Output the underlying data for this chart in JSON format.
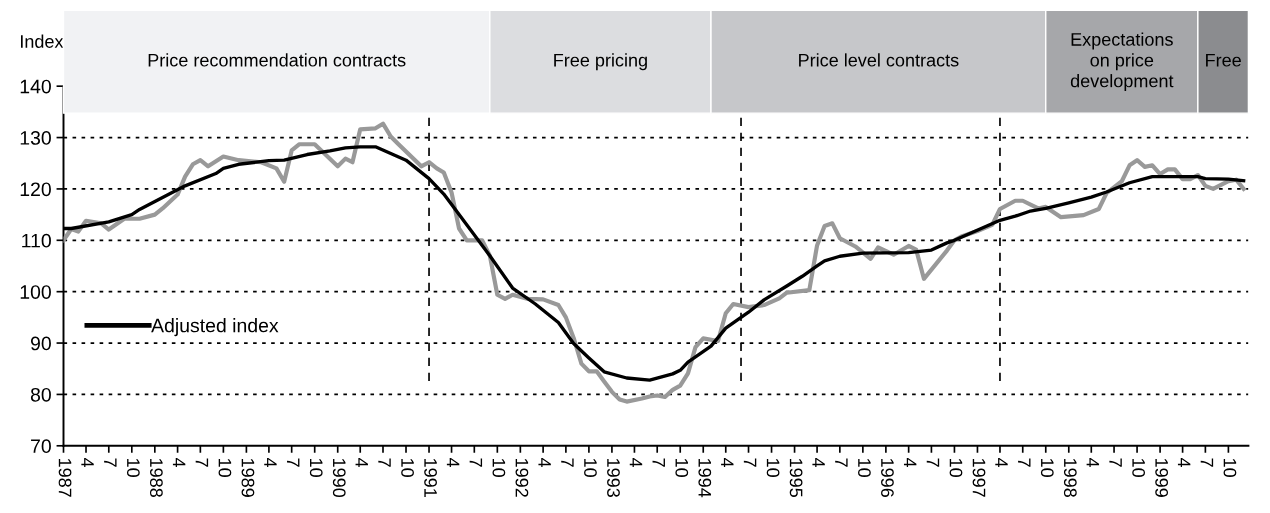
{
  "chart_data": {
    "type": "line",
    "ylabel": "Index",
    "xlim": [
      "1987-01-01",
      "1999-12-20"
    ],
    "ylim": [
      70,
      140
    ],
    "yticks": [
      70,
      80,
      90,
      100,
      110,
      120,
      130,
      140
    ],
    "xticks": [
      {
        "value": "1987-01",
        "label": "1987"
      },
      {
        "value": "1987-04",
        "label": "4"
      },
      {
        "value": "1987-07",
        "label": "7"
      },
      {
        "value": "1987-10",
        "label": "10"
      },
      {
        "value": "1988-01",
        "label": "1988"
      },
      {
        "value": "1988-04",
        "label": "4"
      },
      {
        "value": "1988-07",
        "label": "7"
      },
      {
        "value": "1988-10",
        "label": "10"
      },
      {
        "value": "1989-01",
        "label": "1989"
      },
      {
        "value": "1989-04",
        "label": "4"
      },
      {
        "value": "1989-07",
        "label": "7"
      },
      {
        "value": "1989-10",
        "label": "10"
      },
      {
        "value": "1990-01",
        "label": "1990"
      },
      {
        "value": "1990-04",
        "label": "4"
      },
      {
        "value": "1990-07",
        "label": "7"
      },
      {
        "value": "1990-10",
        "label": "10"
      },
      {
        "value": "1991-01",
        "label": "1991"
      },
      {
        "value": "1991-04",
        "label": "4"
      },
      {
        "value": "1991-07",
        "label": "7"
      },
      {
        "value": "1991-10",
        "label": "10"
      },
      {
        "value": "1992-01",
        "label": "1992"
      },
      {
        "value": "1992-04",
        "label": "4"
      },
      {
        "value": "1992-07",
        "label": "7"
      },
      {
        "value": "1992-10",
        "label": "10"
      },
      {
        "value": "1993-01",
        "label": "1993"
      },
      {
        "value": "1993-04",
        "label": "4"
      },
      {
        "value": "1993-07",
        "label": "7"
      },
      {
        "value": "1993-10",
        "label": "10"
      },
      {
        "value": "1994-01",
        "label": "1994"
      },
      {
        "value": "1994-04",
        "label": "4"
      },
      {
        "value": "1994-07",
        "label": "7"
      },
      {
        "value": "1994-10",
        "label": "10"
      },
      {
        "value": "1995-01",
        "label": "1995"
      },
      {
        "value": "1995-04",
        "label": "4"
      },
      {
        "value": "1995-07",
        "label": "7"
      },
      {
        "value": "1995-10",
        "label": "10"
      },
      {
        "value": "1996-01",
        "label": "1996"
      },
      {
        "value": "1996-04",
        "label": "4"
      },
      {
        "value": "1996-07",
        "label": "7"
      },
      {
        "value": "1996-10",
        "label": "10"
      },
      {
        "value": "1997-01",
        "label": "1997"
      },
      {
        "value": "1997-04",
        "label": "4"
      },
      {
        "value": "1997-07",
        "label": "7"
      },
      {
        "value": "1997-10",
        "label": "10"
      },
      {
        "value": "1998-01",
        "label": "1998"
      },
      {
        "value": "1998-04",
        "label": "4"
      },
      {
        "value": "1998-07",
        "label": "7"
      },
      {
        "value": "1998-10",
        "label": "10"
      },
      {
        "value": "1999-01",
        "label": "1999"
      },
      {
        "value": "1999-04",
        "label": "4"
      },
      {
        "value": "1999-07",
        "label": "7"
      },
      {
        "value": "1999-10",
        "label": "10"
      }
    ],
    "grid": "y",
    "legend": "left",
    "line_style": "solid",
    "series": [
      {
        "color": "#999999",
        "x": [
          "1987-01",
          "1987-02",
          "1987-03",
          "1987-04",
          "1987-06",
          "1987-07",
          "1987-09",
          "1987-11",
          "1988-01",
          "1988-02",
          "1988-04",
          "1988-05",
          "1988-06",
          "1988-07",
          "1988-08",
          "1988-10",
          "1988-12",
          "1989-03",
          "1989-05",
          "1989-06",
          "1989-07",
          "1989-08",
          "1989-10",
          "1990-01",
          "1990-02",
          "1990-03",
          "1990-04",
          "1990-06",
          "1990-07",
          "1990-08",
          "1990-09",
          "1990-12",
          "1991-01",
          "1991-02",
          "1991-03",
          "1991-04",
          "1991-05",
          "1991-06",
          "1991-08",
          "1991-09",
          "1991-10",
          "1991-11",
          "1991-12",
          "1992-02",
          "1992-04",
          "1992-06",
          "1992-07",
          "1992-08",
          "1992-09",
          "1992-10",
          "1992-11",
          "1992-12",
          "1993-01",
          "1993-02",
          "1993-03",
          "1993-05",
          "1993-06",
          "1993-07",
          "1993-08",
          "1993-09",
          "1993-10",
          "1993-11",
          "1993-12",
          "1994-01",
          "1994-03",
          "1994-04",
          "1994-05",
          "1994-07",
          "1994-09",
          "1994-11",
          "1994-12",
          "1995-03",
          "1995-04",
          "1995-05",
          "1995-06",
          "1995-07",
          "1995-09",
          "1995-11",
          "1995-12",
          "1996-02",
          "1996-04",
          "1996-05",
          "1996-06",
          "1996-09",
          "1996-10",
          "1996-11",
          "1997-01",
          "1997-03",
          "1997-04",
          "1997-06",
          "1997-07",
          "1997-09",
          "1997-10",
          "1997-12",
          "1998-03",
          "1998-05",
          "1998-06",
          "1998-08",
          "1998-09",
          "1998-10",
          "1998-11",
          "1998-12",
          "1999-01",
          "1999-02",
          "1999-03",
          "1999-04",
          "1999-05",
          "1999-06",
          "1999-07",
          "1999-08",
          "1999-10",
          "1999-11",
          "1999-12"
        ],
        "values": [
          110,
          112.2,
          111.7,
          113.8,
          113.3,
          112.1,
          114.2,
          114.2,
          115,
          116.2,
          118.9,
          122.4,
          124.8,
          125.6,
          124.4,
          126.3,
          125.6,
          125.2,
          124,
          121.4,
          127.5,
          128.7,
          128.7,
          124.4,
          125.9,
          125.2,
          131.6,
          131.8,
          132.7,
          130.2,
          128.7,
          124.4,
          125.2,
          124,
          123.2,
          119.3,
          112.3,
          110,
          110,
          107,
          99.4,
          98.6,
          99.4,
          98.6,
          98.5,
          97.4,
          95,
          91,
          86,
          84.5,
          84.5,
          82.5,
          80.5,
          79,
          78.6,
          79.2,
          79.6,
          79.8,
          79.5,
          80.9,
          81.7,
          84.1,
          89.2,
          90.9,
          90.4,
          95.8,
          97.6,
          97,
          97.4,
          98.7,
          99.8,
          100.3,
          109,
          112.8,
          113.3,
          110.4,
          108.8,
          106.4,
          108.6,
          107.2,
          108.9,
          108.2,
          102.5,
          108,
          110,
          110.8,
          111.8,
          113,
          116.1,
          117.7,
          117.7,
          116.2,
          116.5,
          114.5,
          114.9,
          116.1,
          119.2,
          121.5,
          124.6,
          125.6,
          124.3,
          124.6,
          122.9,
          123.8,
          123.8,
          121.9,
          121.9,
          122.7,
          120.6,
          120,
          121.5,
          121.8,
          120
        ]
      },
      {
        "name": "Adjusted index",
        "color": "#000000",
        "x": [
          "1987-01",
          "1987-02",
          "1987-07",
          "1987-10",
          "1987-11",
          "1988-05",
          "1988-09",
          "1988-10",
          "1988-12",
          "1989-04",
          "1989-06",
          "1989-09",
          "1989-12",
          "1990-02",
          "1990-04",
          "1990-06",
          "1990-10",
          "1991-01",
          "1991-03",
          "1991-09",
          "1991-12",
          "1992-03",
          "1992-06",
          "1992-08",
          "1992-10",
          "1992-12",
          "1993-03",
          "1993-06",
          "1993-09",
          "1993-10",
          "1993-11",
          "1994-02",
          "1994-04",
          "1994-07",
          "1994-09",
          "1994-12",
          "1995-02",
          "1995-04",
          "1995-05",
          "1995-07",
          "1995-10",
          "1996-04",
          "1996-07",
          "1996-09",
          "1996-10",
          "1997-04",
          "1997-06",
          "1997-08",
          "1997-10",
          "1998-01",
          "1998-04",
          "1998-06",
          "1998-09",
          "1998-12",
          "1999-06",
          "1999-07",
          "1999-10",
          "1999-12"
        ],
        "values": [
          112.3,
          112.3,
          113.6,
          115,
          116,
          120.6,
          123,
          124,
          124.8,
          125.5,
          125.6,
          126.7,
          127.4,
          128,
          128.2,
          128.2,
          125.6,
          122,
          119,
          107,
          100.7,
          97.6,
          94,
          89.9,
          87.1,
          84.4,
          83.2,
          82.8,
          84,
          84.7,
          86.3,
          89.4,
          92.9,
          96,
          98.4,
          101.1,
          103,
          105,
          106,
          106.9,
          107.5,
          107.6,
          108.1,
          109.5,
          110,
          113.9,
          114.7,
          115.7,
          116.2,
          117.3,
          118.4,
          119.4,
          121.2,
          122.4,
          122.4,
          122,
          121.9,
          121.6
        ]
      }
    ],
    "bands": [
      {
        "axis": "x",
        "from": "1987-01",
        "to": "1991-09",
        "label": "Price recommendation contracts",
        "color": "#f1f2f4"
      },
      {
        "axis": "x",
        "from": "1991-09",
        "to": "1994-02",
        "label": "Free pricing",
        "color": "#dcdde0"
      },
      {
        "axis": "x",
        "from": "1994-02",
        "to": "1997-10",
        "label": "Price level contracts",
        "color": "#c6c7ca"
      },
      {
        "axis": "x",
        "from": "1997-10",
        "to": "1999-06",
        "label": "Expectations\non price\ndevelopment",
        "color": "#a6a7aa"
      },
      {
        "axis": "x",
        "from": "1999-06",
        "to": "1999-12-20",
        "label": "Free",
        "color": "#8b8c8f"
      }
    ],
    "ref_lines": [
      {
        "axis": "x",
        "value": "1991-01",
        "color": "#000000",
        "line_style": "dashed"
      },
      {
        "axis": "x",
        "value": "1994-06",
        "color": "#000000",
        "line_style": "dashed"
      },
      {
        "axis": "x",
        "value": "1997-04",
        "color": "#000000",
        "line_style": "dashed"
      }
    ]
  }
}
